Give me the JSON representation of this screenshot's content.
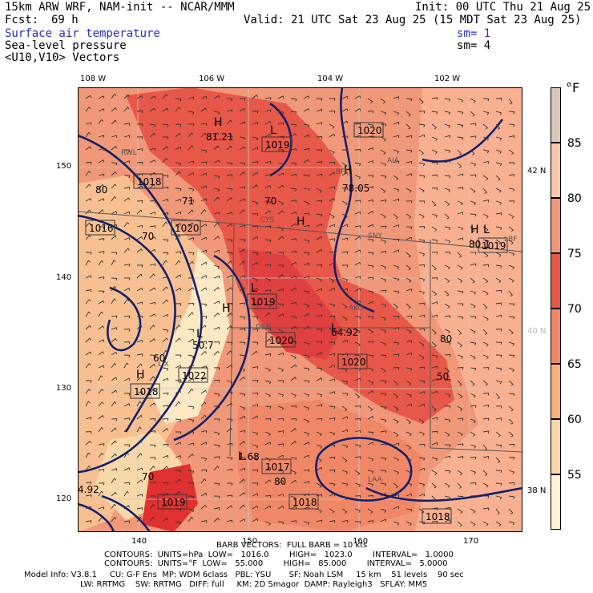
{
  "header": {
    "model_line": "15km ARW WRF, NAM-init -- NCAR/MMM",
    "init_line": "Init: 00 UTC Thu 21 Aug 25",
    "fcst_label": "Fcst:",
    "fcst_value": "69 h",
    "valid_line": "Valid: 21 UTC Sat 23 Aug 25 (15 MDT Sat 23 Aug 25)",
    "field1": "Surface air temperature",
    "field2": "Sea-level pressure",
    "field2_sm": "sm= 4",
    "field1_sm": "sm= 1",
    "field3": "<U10,V10> Vectors"
  },
  "axes": {
    "top_lon": [
      "108 W",
      "106 W",
      "104 W",
      "102 W"
    ],
    "right_lat": [
      "42 N",
      "40 N",
      "38 N"
    ],
    "left_grid": [
      "150",
      "140",
      "130",
      "120"
    ],
    "bottom_grid": [
      "140",
      "150",
      "160",
      "170"
    ]
  },
  "colorbar": {
    "unit": "°F",
    "labels": [
      "85",
      "80",
      "75",
      "70",
      "65",
      "60",
      "55"
    ],
    "colors": [
      "#d8c8b8",
      "#f8c8a8",
      "#f09878",
      "#e85848",
      "#f08868",
      "#f8b078",
      "#f8d8a8",
      "#fef4d6"
    ]
  },
  "map_labels": {
    "isobars": [
      "1018",
      "1016",
      "1019",
      "1020",
      "1020",
      "1019",
      "1020",
      "1020",
      "1022",
      "1018",
      "1017",
      "1018",
      "1019",
      "1018",
      "1019"
    ],
    "highs": [
      "H",
      "H",
      "H",
      "H",
      "H",
      "H"
    ],
    "lows": [
      "L",
      "L",
      "L",
      "L",
      "L",
      "L"
    ],
    "values": [
      "81.21",
      "78.05",
      "71",
      "50.7",
      "64.92",
      "1.68",
      "80.1",
      "4.92"
    ],
    "temps": [
      "70",
      "80",
      "60",
      "80",
      "70",
      "80",
      "70",
      "50"
    ],
    "stations": [
      "RWL",
      "CYS",
      "DEN",
      "AKO",
      "LIX",
      "LAA",
      "BFF",
      "AIA",
      "SNY",
      "LBF"
    ]
  },
  "footer": {
    "barb": "BARB VECTORS:  FULL BARB = 10 kts",
    "contours1": "CONTOURS:  UNITS=hPa  LOW=   1016.0        HIGH=   1023.0        INTERVAL=   1.0000",
    "contours2": "CONTOURS:  UNITS=°F  LOW=   55.000        HIGH=   85.000        INTERVAL=   5.0000",
    "model_info": "Model Info: V3.8.1     CU: G-F Ens  MP: WDM 6class   PBL: YSU       SF: Noah LSM     15 km    51 levels    90 sec",
    "model_info2": "LW: RRTMG    SW: RRTMG   DIFF: full     KM: 2D Smagor  DAMP: Rayleigh3   SFLAY: MM5"
  }
}
